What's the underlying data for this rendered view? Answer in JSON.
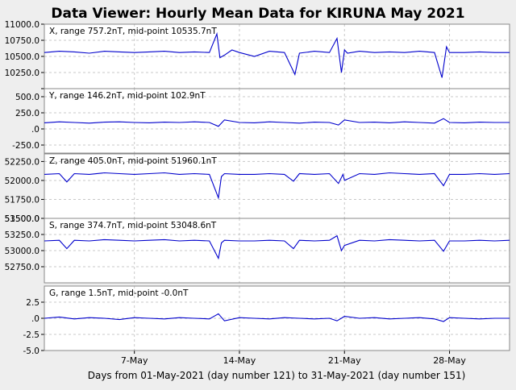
{
  "title": "Data Viewer:  Hourly Mean Data for KIRUNA May 2021",
  "xlabel": "Days from 01-May-2021 (day number 121) to 31-May-2021 (day number 151)",
  "colors": {
    "background": "#eeeeee",
    "plot_bg": "#ffffff",
    "line": "#0000cc",
    "grid": "#c8c8c8"
  },
  "chart_data": [
    {
      "type": "line",
      "label": "X, range 757.2nT, mid-point 10535.7nT",
      "ylim": [
        10000,
        11000
      ],
      "yticks": [
        10000,
        10250,
        10500,
        10750,
        11000
      ],
      "ytick_labels": [
        "",
        "10250.0",
        "10500.0",
        "10750.0",
        "11000.0"
      ],
      "xlim": [
        1,
        32
      ],
      "xticks": [
        7,
        14,
        21,
        28
      ],
      "xtick_labels": [
        "7-May",
        "14-May",
        "21-May",
        "28-May"
      ],
      "series": [
        {
          "x": [
            1,
            2,
            3,
            4,
            5,
            6,
            7,
            8,
            9,
            10,
            11,
            12,
            12.5,
            12.7,
            13,
            13.5,
            14,
            15,
            16,
            17,
            17.7,
            18,
            19,
            20,
            20.5,
            20.8,
            21,
            21.2,
            22,
            23,
            24,
            25,
            26,
            27,
            27.5,
            27.8,
            28,
            29,
            30,
            31,
            32
          ],
          "y": [
            10560,
            10580,
            10570,
            10550,
            10580,
            10570,
            10560,
            10570,
            10580,
            10560,
            10570,
            10560,
            10850,
            10480,
            10520,
            10600,
            10560,
            10500,
            10580,
            10560,
            10220,
            10550,
            10580,
            10560,
            10780,
            10250,
            10600,
            10550,
            10580,
            10560,
            10570,
            10560,
            10580,
            10560,
            10170,
            10650,
            10560,
            10560,
            10570,
            10560,
            10560
          ]
        }
      ]
    },
    {
      "type": "line",
      "label": "Y, range 146.2nT, mid-point 102.9nT",
      "ylim": [
        -375,
        625
      ],
      "yticks": [
        -250,
        0,
        250,
        500
      ],
      "ytick_labels": [
        "-250.0",
        ".0",
        "250.0",
        "500.0"
      ],
      "xlim": [
        1,
        32
      ],
      "xticks": [
        7,
        14,
        21,
        28
      ],
      "xtick_labels": [
        "7-May",
        "14-May",
        "21-May",
        "28-May"
      ],
      "series": [
        {
          "x": [
            1,
            2,
            3,
            4,
            5,
            6,
            7,
            8,
            9,
            10,
            11,
            12,
            12.6,
            13,
            14,
            15,
            16,
            17,
            18,
            19,
            20,
            20.6,
            21,
            22,
            23,
            24,
            25,
            26,
            27,
            27.6,
            28,
            29,
            30,
            31,
            32
          ],
          "y": [
            95,
            110,
            100,
            90,
            105,
            110,
            100,
            95,
            105,
            100,
            110,
            100,
            40,
            140,
            100,
            95,
            110,
            100,
            90,
            105,
            100,
            60,
            140,
            100,
            105,
            95,
            110,
            100,
            90,
            160,
            100,
            95,
            105,
            100,
            100
          ]
        }
      ]
    },
    {
      "type": "line",
      "label": "Z, range 405.0nT, mid-point 51960.1nT",
      "ylim": [
        51500,
        52350
      ],
      "yticks": [
        51500,
        51750,
        52000,
        52250
      ],
      "ytick_labels": [
        "51500.0",
        "51750.0",
        "52000.0",
        "52250.0"
      ],
      "xlim": [
        1,
        32
      ],
      "xticks": [
        7,
        14,
        21,
        28
      ],
      "xtick_labels": [
        "7-May",
        "14-May",
        "21-May",
        "28-May"
      ],
      "series": [
        {
          "x": [
            1,
            2,
            2.5,
            3,
            4,
            5,
            6,
            7,
            8,
            9,
            10,
            11,
            12,
            12.6,
            12.8,
            13,
            14,
            15,
            16,
            17,
            17.6,
            18,
            19,
            20,
            20.6,
            20.9,
            21,
            22,
            23,
            24,
            25,
            26,
            27,
            27.6,
            28,
            29,
            30,
            31,
            32
          ],
          "y": [
            52080,
            52090,
            51980,
            52090,
            52080,
            52100,
            52090,
            52080,
            52090,
            52100,
            52080,
            52090,
            52080,
            51770,
            52050,
            52090,
            52080,
            52080,
            52090,
            52080,
            51990,
            52090,
            52080,
            52090,
            51960,
            52080,
            52000,
            52090,
            52080,
            52100,
            52090,
            52080,
            52090,
            51930,
            52080,
            52080,
            52090,
            52080,
            52090
          ]
        }
      ]
    },
    {
      "type": "line",
      "label": "S, range 374.7nT, mid-point 53048.6nT",
      "ylim": [
        52500,
        53500
      ],
      "yticks": [
        52750,
        53000,
        53250,
        53500
      ],
      "ytick_labels": [
        "52750.0",
        "53000.0",
        "53250.0",
        "53500.0"
      ],
      "xlim": [
        1,
        32
      ],
      "xticks": [
        7,
        14,
        21,
        28
      ],
      "xtick_labels": [
        "7-May",
        "14-May",
        "21-May",
        "28-May"
      ],
      "series": [
        {
          "x": [
            1,
            2,
            2.5,
            3,
            4,
            5,
            6,
            7,
            8,
            9,
            10,
            11,
            12,
            12.6,
            12.8,
            13,
            14,
            15,
            16,
            17,
            17.6,
            18,
            19,
            20,
            20.5,
            20.8,
            21,
            22,
            23,
            24,
            25,
            26,
            27,
            27.6,
            28,
            29,
            30,
            31,
            32
          ],
          "y": [
            53150,
            53160,
            53030,
            53160,
            53150,
            53170,
            53160,
            53150,
            53160,
            53170,
            53150,
            53160,
            53150,
            52880,
            53120,
            53160,
            53150,
            53150,
            53160,
            53150,
            53030,
            53160,
            53150,
            53160,
            53230,
            53000,
            53080,
            53160,
            53150,
            53170,
            53160,
            53150,
            53160,
            52990,
            53150,
            53150,
            53160,
            53150,
            53160
          ]
        }
      ]
    },
    {
      "type": "line",
      "label": "G, range 1.5nT, mid-point -0.0nT",
      "ylim": [
        -5,
        5
      ],
      "yticks": [
        -5,
        -2.5,
        0,
        2.5
      ],
      "ytick_labels": [
        "-5.0",
        "-2.5",
        ".0",
        "2.5"
      ],
      "xlim": [
        1,
        32
      ],
      "xticks": [
        7,
        14,
        21,
        28
      ],
      "xtick_labels": [
        "7-May",
        "14-May",
        "21-May",
        "28-May"
      ],
      "series": [
        {
          "x": [
            1,
            2,
            3,
            4,
            5,
            6,
            7,
            8,
            9,
            10,
            11,
            12,
            12.6,
            13,
            14,
            15,
            16,
            17,
            18,
            19,
            20,
            20.5,
            21,
            22,
            23,
            24,
            25,
            26,
            27,
            27.6,
            28,
            29,
            30,
            31,
            32
          ],
          "y": [
            0,
            0.2,
            -0.1,
            0.1,
            0,
            -0.2,
            0.1,
            0,
            -0.1,
            0.1,
            0,
            -0.1,
            0.7,
            -0.4,
            0.1,
            0,
            -0.1,
            0.1,
            0,
            -0.1,
            0,
            -0.4,
            0.3,
            0,
            0.1,
            -0.1,
            0,
            0.1,
            -0.1,
            -0.5,
            0.1,
            0,
            -0.1,
            0,
            0
          ]
        }
      ]
    }
  ]
}
